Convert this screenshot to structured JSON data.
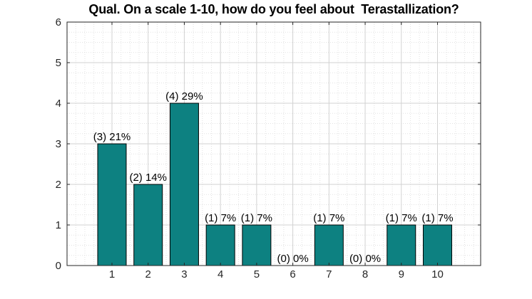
{
  "title": "Qual. On a scale 1-10, how do you feel about  Terastallization?",
  "chart_data": {
    "type": "bar",
    "title": "Qual. On a scale 1-10, how do you feel about  Terastallization?",
    "xlabel": "",
    "ylabel": "",
    "categories": [
      "1",
      "2",
      "3",
      "4",
      "5",
      "6",
      "7",
      "8",
      "9",
      "10"
    ],
    "values": [
      3,
      2,
      4,
      1,
      1,
      0,
      1,
      0,
      1,
      1
    ],
    "bar_labels": [
      "(3) 21%",
      "(2) 14%",
      "(4) 29%",
      "(1) 7%",
      "(1) 7%",
      "(0) 0%",
      "(1) 7%",
      "(0) 0%",
      "(1) 7%",
      "(1) 7%"
    ],
    "ylim": [
      0,
      6
    ],
    "yticks": [
      "0",
      "1",
      "2",
      "3",
      "4",
      "5",
      "6"
    ],
    "grid": "major and minor (dotted), box on, ticks inward mirrored",
    "legend": "none",
    "colors": {
      "bar_fill": "#0d8181",
      "bar_edge": "#000000",
      "axis": "#262626",
      "tick_label": "#262626",
      "bar_label_text": "#000000",
      "grid_major": "#d2d2d2",
      "grid_minor": "#e2e2e2",
      "background": "#ffffff"
    }
  }
}
